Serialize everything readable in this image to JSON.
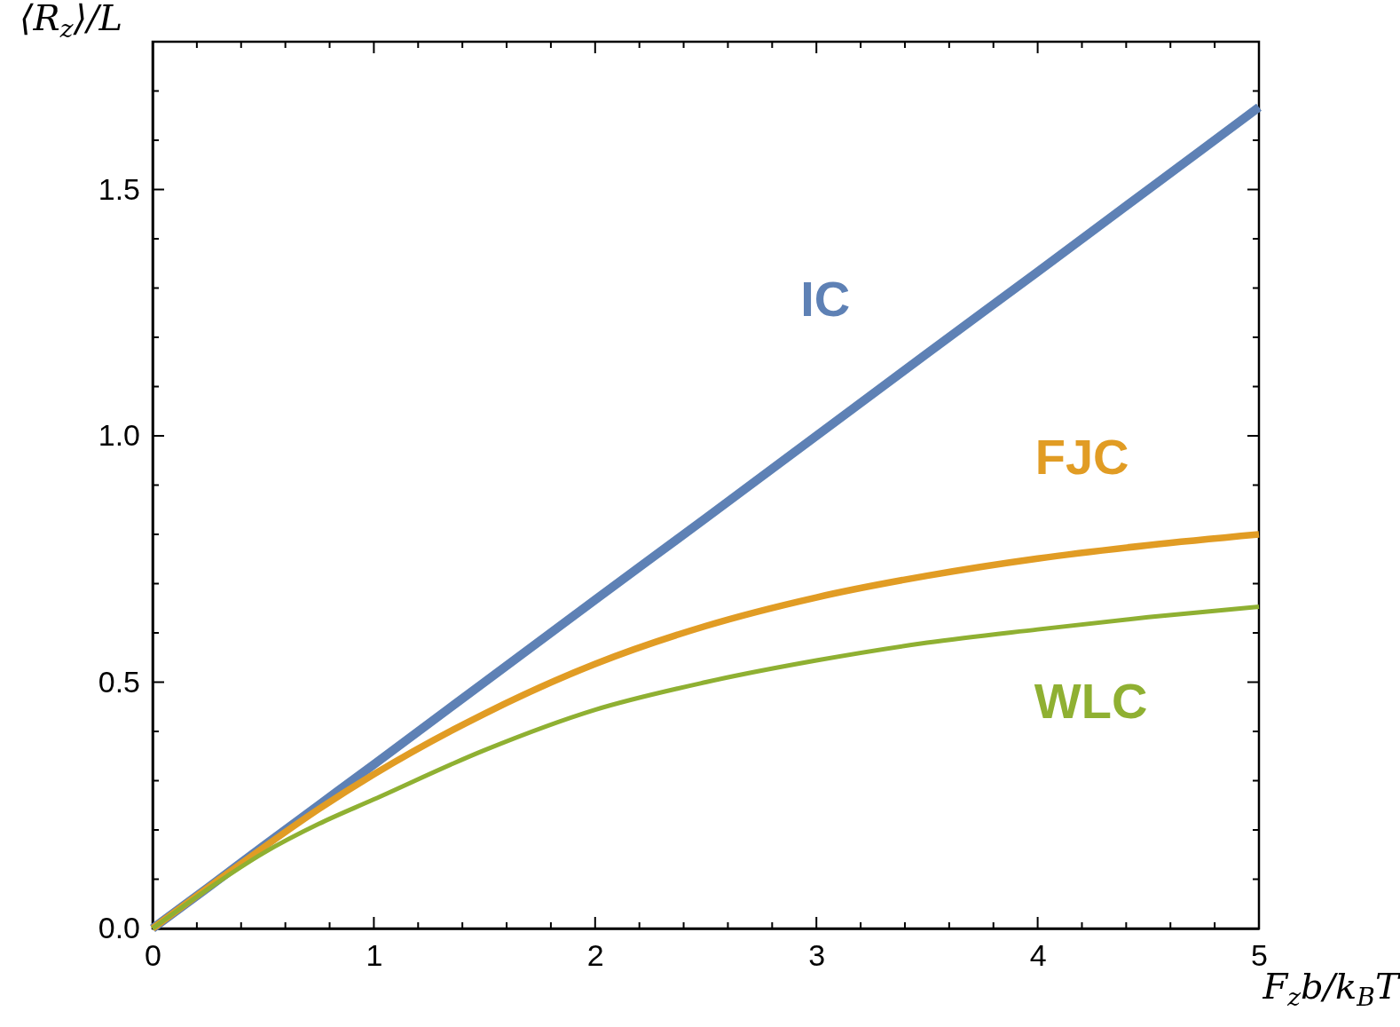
{
  "chart_data": {
    "type": "line",
    "xlabel": "F$_{z}$b/k$_{B}$T",
    "ylabel": "⟨R$_{z}$⟩/L",
    "xlim": [
      0,
      5
    ],
    "ylim": [
      0,
      1.8
    ],
    "xticks": [
      0,
      {
        "value": 0.2,
        "label": null
      },
      {
        "value": 0.4,
        "label": null
      },
      {
        "value": 0.6,
        "label": null
      },
      {
        "value": 0.8,
        "label": null
      },
      1,
      {
        "value": 1.2,
        "label": null
      },
      {
        "value": 1.4,
        "label": null
      },
      {
        "value": 1.6,
        "label": null
      },
      {
        "value": 1.8,
        "label": null
      },
      2,
      {
        "value": 2.2,
        "label": null
      },
      {
        "value": 2.4,
        "label": null
      },
      {
        "value": 2.6,
        "label": null
      },
      {
        "value": 2.8,
        "label": null
      },
      3,
      {
        "value": 3.2,
        "label": null
      },
      {
        "value": 3.4,
        "label": null
      },
      {
        "value": 3.6,
        "label": null
      },
      {
        "value": 3.8,
        "label": null
      },
      4,
      {
        "value": 4.2,
        "label": null
      },
      {
        "value": 4.4,
        "label": null
      },
      {
        "value": 4.6,
        "label": null
      },
      {
        "value": 4.8,
        "label": null
      },
      5
    ],
    "yticks": [
      {
        "value": 0,
        "label": "0.0"
      },
      {
        "value": 0.1,
        "label": null
      },
      {
        "value": 0.2,
        "label": null
      },
      {
        "value": 0.3,
        "label": null
      },
      {
        "value": 0.4,
        "label": null
      },
      {
        "value": 0.5,
        "label": "0.5"
      },
      {
        "value": 0.6,
        "label": null
      },
      {
        "value": 0.7,
        "label": null
      },
      {
        "value": 0.8,
        "label": null
      },
      {
        "value": 0.9,
        "label": null
      },
      {
        "value": 1,
        "label": "1.0"
      },
      {
        "value": 1.1,
        "label": null
      },
      {
        "value": 1.2,
        "label": null
      },
      {
        "value": 1.3,
        "label": null
      },
      {
        "value": 1.4,
        "label": null
      },
      {
        "value": 1.5,
        "label": "1.5"
      },
      {
        "value": 1.6,
        "label": null
      },
      {
        "value": 1.7,
        "label": null
      },
      {
        "value": 1.8,
        "label": null
      }
    ],
    "x": [
      0,
      0.25,
      0.5,
      0.75,
      1,
      1.5,
      2,
      2.5,
      3,
      3.5,
      4,
      4.5,
      5
    ],
    "line_style": "solid",
    "series": [
      {
        "name": "IC",
        "color": "#5e81b5",
        "values": [
          0,
          0.083,
          0.167,
          0.25,
          0.333,
          0.5,
          0.667,
          0.833,
          1,
          1.167,
          1.333,
          1.5,
          1.667
        ]
      },
      {
        "name": "FJC",
        "color": "#e19c24",
        "values": [
          0,
          0.083,
          0.164,
          0.242,
          0.313,
          0.436,
          0.537,
          0.614,
          0.672,
          0.716,
          0.751,
          0.778,
          0.8
        ]
      },
      {
        "name": "WLC",
        "color": "#8fb032",
        "values": [
          0,
          0.08,
          0.153,
          0.212,
          0.262,
          0.362,
          0.444,
          0.5,
          0.544,
          0.58,
          0.607,
          0.632,
          0.653
        ]
      }
    ]
  }
}
